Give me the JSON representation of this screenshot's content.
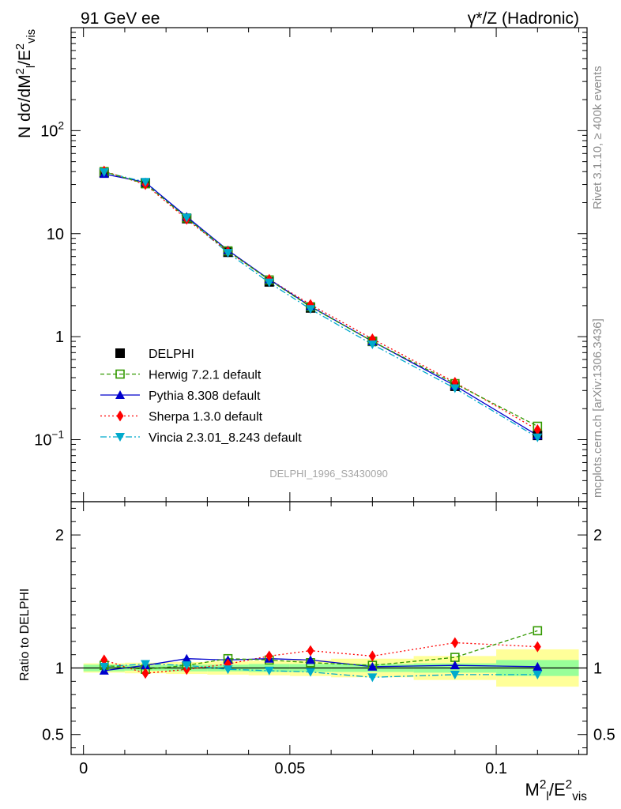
{
  "header": {
    "left": "91 GeV ee",
    "right": "γ*/Z (Hadronic)"
  },
  "side_labels": {
    "rivet": "Rivet 3.1.10, ≥ 400k events",
    "mcplots": "mcplots.cern.ch [arXiv:1306.3436]"
  },
  "analysis_id": "DELPHI_1996_S3430090",
  "colors": {
    "data": "#000000",
    "herwig": "#339900",
    "pythia": "#0000cc",
    "sherpa": "#ff0000",
    "vincia": "#00aacc",
    "band_inner": "#99ff99",
    "band_outer": "#ffff99"
  },
  "chart_data": [
    {
      "type": "line",
      "panel": "main",
      "ylabel": "N dσ/dM_l^2/E_vis^2",
      "yscale": "log",
      "ylim": [
        0.025,
        1000
      ],
      "xlim": [
        -0.003,
        0.122
      ],
      "y_ticks": [
        {
          "value": 100,
          "label": "10",
          "exp": "2"
        },
        {
          "value": 10,
          "label": "10",
          "exp": ""
        },
        {
          "value": 1,
          "label": "1",
          "exp": ""
        },
        {
          "value": 0.1,
          "label": "10",
          "exp": "−1"
        }
      ],
      "legend": {
        "position": "lower-left",
        "entries": [
          "DELPHI",
          "Herwig 7.2.1 default",
          "Pythia 8.308 default",
          "Sherpa 1.3.0 default",
          "Vincia 2.3.01_8.243 default"
        ]
      },
      "x": [
        0.005,
        0.015,
        0.025,
        0.035,
        0.045,
        0.055,
        0.07,
        0.09,
        0.11
      ],
      "series": [
        {
          "name": "DELPHI",
          "marker": "square-filled",
          "values": [
            39,
            31,
            14,
            6.6,
            3.4,
            1.9,
            0.9,
            0.33,
            0.11
          ]
        },
        {
          "name": "Herwig 7.2.1 default",
          "marker": "square-open",
          "values": [
            40,
            30.5,
            14.2,
            6.8,
            3.55,
            1.95,
            0.9,
            0.35,
            0.135
          ]
        },
        {
          "name": "Pythia 8.308 default",
          "marker": "triangle-up",
          "values": [
            38,
            31.5,
            14.6,
            6.9,
            3.6,
            1.97,
            0.9,
            0.335,
            0.11
          ]
        },
        {
          "name": "Sherpa 1.3.0 default",
          "marker": "diamond",
          "values": [
            40.5,
            30,
            13.8,
            6.7,
            3.6,
            2.05,
            0.95,
            0.36,
            0.125
          ]
        },
        {
          "name": "Vincia 2.3.01_8.243 default",
          "marker": "triangle-down",
          "values": [
            39.5,
            31.8,
            14.3,
            6.5,
            3.35,
            1.85,
            0.84,
            0.315,
            0.105
          ]
        }
      ]
    },
    {
      "type": "line",
      "panel": "ratio",
      "ylabel": "Ratio to DELPHI",
      "ylim": [
        0.35,
        2.25
      ],
      "xlabel": "M_l^2/E_vis^2",
      "x_ticks": [
        {
          "value": 0,
          "label": "0"
        },
        {
          "value": 0.05,
          "label": "0.05"
        },
        {
          "value": 0.1,
          "label": "0.1"
        }
      ],
      "y_ticks": [
        {
          "value": 2,
          "label": "2"
        },
        {
          "value": 1,
          "label": "1"
        },
        {
          "value": 0.5,
          "label": "0.5"
        }
      ],
      "bins": [
        [
          0,
          0.01
        ],
        [
          0.01,
          0.02
        ],
        [
          0.02,
          0.03
        ],
        [
          0.03,
          0.04
        ],
        [
          0.04,
          0.05
        ],
        [
          0.05,
          0.06
        ],
        [
          0.06,
          0.08
        ],
        [
          0.08,
          0.1
        ],
        [
          0.1,
          0.12
        ]
      ],
      "band_inner": [
        0.05,
        0.04,
        0.05,
        0.05,
        0.06,
        0.06,
        0.06,
        0.07,
        0.12
      ],
      "band_outer": [
        0.07,
        0.08,
        0.09,
        0.1,
        0.11,
        0.12,
        0.14,
        0.18,
        0.28
      ],
      "x": [
        0.005,
        0.015,
        0.025,
        0.035,
        0.045,
        0.055,
        0.07,
        0.09,
        0.11
      ],
      "series": [
        {
          "name": "Herwig 7.2.1 default",
          "marker": "square-open",
          "values": [
            1.02,
            0.99,
            1.02,
            1.07,
            1.06,
            1.04,
            1.02,
            1.08,
            1.28
          ]
        },
        {
          "name": "Pythia 8.308 default",
          "marker": "triangle-up",
          "values": [
            0.98,
            1.02,
            1.07,
            1.06,
            1.07,
            1.06,
            1.01,
            1.02,
            1.01
          ]
        },
        {
          "name": "Sherpa 1.3.0 default",
          "marker": "diamond",
          "values": [
            1.06,
            0.96,
            0.99,
            1.03,
            1.09,
            1.13,
            1.09,
            1.19,
            1.16
          ]
        },
        {
          "name": "Vincia 2.3.01_8.243 default",
          "marker": "triangle-down",
          "values": [
            1.01,
            1.03,
            1.02,
            0.99,
            0.98,
            0.97,
            0.93,
            0.95,
            0.95
          ]
        }
      ]
    }
  ]
}
